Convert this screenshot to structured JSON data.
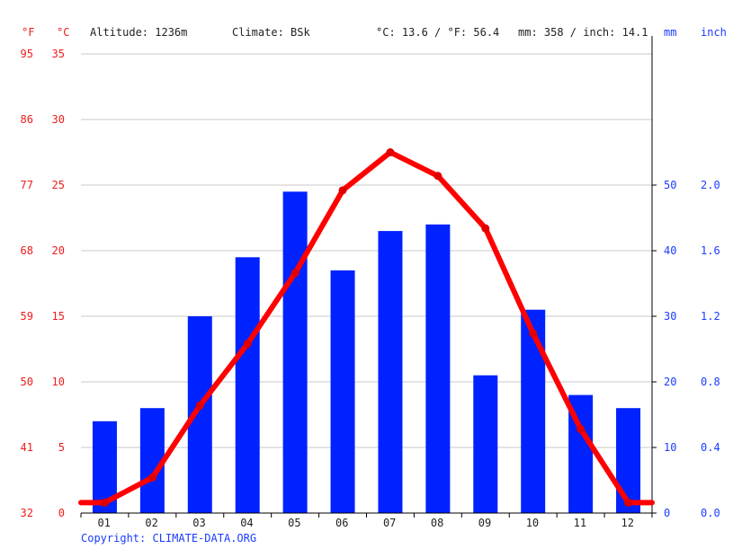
{
  "header": {
    "unit_f": "°F",
    "unit_c": "°C",
    "altitude": "Altitude: 1236m",
    "climate": "Climate: BSk",
    "temp_summary": "°C: 13.6 / °F: 56.4",
    "precip_summary": "mm: 358 / inch: 14.1",
    "unit_mm": "mm",
    "unit_inch": "inch"
  },
  "footer": {
    "copyright": "Copyright: CLIMATE-DATA.ORG"
  },
  "colors": {
    "temperature": "#ff0000",
    "precipitation": "#0022ff",
    "grid": "#c8c8c8",
    "axis": "#000000"
  },
  "chart_data": {
    "type": "bar+line",
    "title": "",
    "categories": [
      "01",
      "02",
      "03",
      "04",
      "05",
      "06",
      "07",
      "08",
      "09",
      "10",
      "11",
      "12"
    ],
    "series": [
      {
        "name": "Precipitation (mm)",
        "type": "bar",
        "axis": "right",
        "values": [
          14,
          16,
          30,
          39,
          49,
          37,
          43,
          44,
          21,
          31,
          18,
          16
        ]
      },
      {
        "name": "Temperature (°C)",
        "type": "line",
        "axis": "left",
        "values": [
          0.8,
          2.7,
          8.2,
          12.9,
          18.3,
          24.6,
          27.5,
          25.7,
          21.7,
          13.7,
          6.4,
          0.8
        ]
      }
    ],
    "left_axis_c": {
      "ticks": [
        0,
        5,
        10,
        15,
        20,
        25,
        30,
        35
      ],
      "range": [
        0,
        35
      ],
      "label": "°C"
    },
    "left_axis_f": {
      "ticks": [
        32,
        41,
        50,
        59,
        68,
        77,
        86,
        95
      ],
      "label": "°F"
    },
    "right_axis_mm": {
      "ticks": [
        0,
        10,
        20,
        30,
        40,
        50
      ],
      "range": [
        0,
        70
      ],
      "label": "mm"
    },
    "right_axis_inch": {
      "ticks": [
        "0.0",
        "0.4",
        "0.8",
        "1.2",
        "1.6",
        "2.0"
      ],
      "label": "inch"
    },
    "grid": true,
    "legend": "none"
  }
}
